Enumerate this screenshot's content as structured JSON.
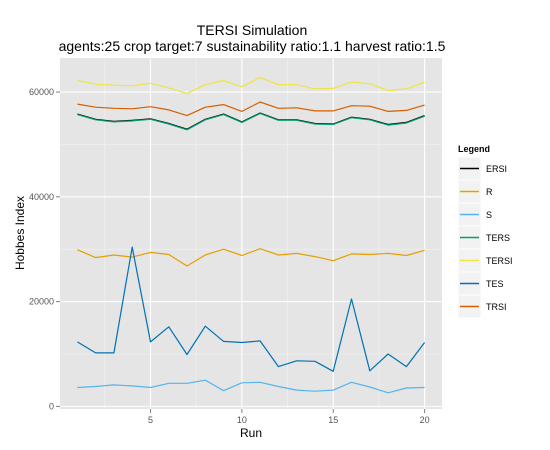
{
  "chart_data": {
    "type": "line",
    "title": "TERSI Simulation",
    "subtitle": "agents:25 crop target:7 sustainability ratio:1.1 harvest ratio:1.5",
    "xlabel": "Run",
    "ylabel": "Hobbes Index",
    "xlim": [
      0.05,
      20.95
    ],
    "ylim": [
      -500,
      66500
    ],
    "x_ticks": [
      5,
      10,
      15,
      20
    ],
    "y_ticks": [
      0,
      20000,
      40000,
      60000
    ],
    "y_tick_labels": [
      "0",
      "20000",
      "40000",
      "60000"
    ],
    "grid": true,
    "legend_title": "Legend",
    "legend_position": "right",
    "x": [
      1,
      2,
      3,
      4,
      5,
      6,
      7,
      8,
      9,
      10,
      11,
      12,
      13,
      14,
      15,
      16,
      17,
      18,
      19,
      20
    ],
    "series": [
      {
        "name": "ERSI",
        "color": "#000000",
        "values": [
          55800,
          54800,
          54400,
          54600,
          54900,
          54000,
          52900,
          54800,
          55800,
          54300,
          56000,
          54700,
          54700,
          54000,
          53900,
          55200,
          54800,
          53800,
          54200,
          55500
        ]
      },
      {
        "name": "R",
        "color": "#E69F00",
        "values": [
          29900,
          28400,
          28900,
          28500,
          29400,
          29000,
          26800,
          28900,
          30000,
          28800,
          30100,
          28900,
          29200,
          28600,
          27800,
          29100,
          29000,
          29200,
          28800,
          29800
        ]
      },
      {
        "name": "S",
        "color": "#56B4E9",
        "values": [
          3600,
          3800,
          4100,
          3900,
          3600,
          4400,
          4400,
          5000,
          3000,
          4500,
          4600,
          3800,
          3100,
          2900,
          3100,
          4600,
          3700,
          2600,
          3500,
          3600
        ]
      },
      {
        "name": "TERS",
        "color": "#009E73",
        "values": [
          55700,
          54700,
          54300,
          54500,
          54800,
          53900,
          52800,
          54700,
          55700,
          54200,
          55900,
          54600,
          54600,
          53900,
          53800,
          55100,
          54700,
          53700,
          54100,
          55400
        ]
      },
      {
        "name": "TERSI",
        "color": "#F0E442",
        "values": [
          62200,
          61500,
          61300,
          61200,
          61700,
          60800,
          59700,
          61400,
          62200,
          61000,
          62800,
          61400,
          61400,
          60600,
          60700,
          61900,
          61600,
          60300,
          60600,
          61900
        ]
      },
      {
        "name": "TES",
        "color": "#0072B2",
        "values": [
          12300,
          10200,
          10200,
          30400,
          12300,
          15200,
          9900,
          15300,
          12400,
          12200,
          12500,
          7600,
          8700,
          8600,
          6700,
          20500,
          6800,
          10000,
          7600,
          12200
        ]
      },
      {
        "name": "TRSI",
        "color": "#D55E00",
        "values": [
          57700,
          57100,
          56900,
          56800,
          57200,
          56600,
          55500,
          57100,
          57600,
          56300,
          58100,
          56900,
          57000,
          56400,
          56400,
          57400,
          57300,
          56300,
          56500,
          57500
        ]
      }
    ]
  }
}
